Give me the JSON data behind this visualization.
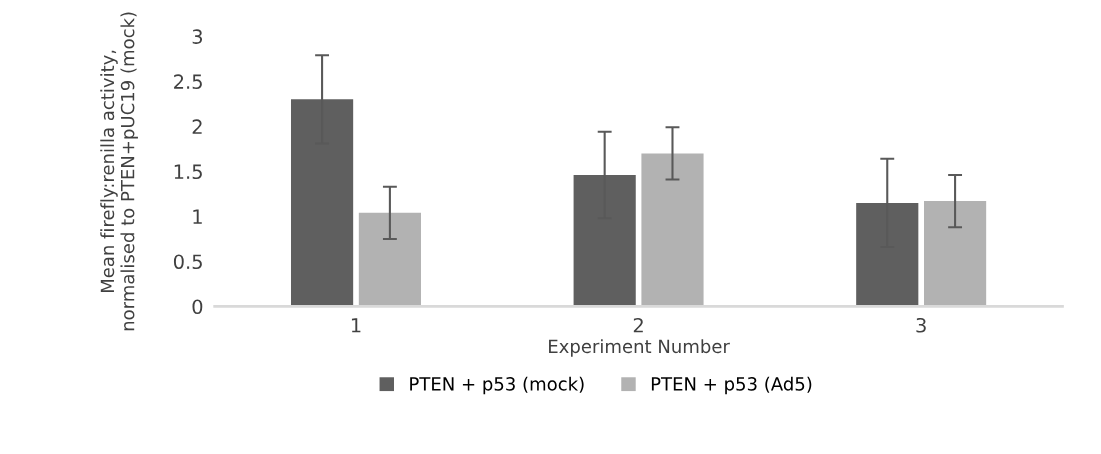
{
  "chart_data": {
    "type": "bar",
    "xlabel": "Experiment Number",
    "ylabel": "Mean firefly:renilla activity, normalised to PTEN+pUC19 (mock)",
    "categories": [
      "1",
      "2",
      "3"
    ],
    "series": [
      {
        "name": "PTEN + p53 (mock)",
        "color": "#5f5f5f",
        "values": [
          2.3,
          1.46,
          1.15
        ],
        "errors": [
          0.49,
          0.48,
          0.49
        ]
      },
      {
        "name": "PTEN + p53 (Ad5)",
        "color": "#b2b2b2",
        "values": [
          1.04,
          1.7,
          1.17
        ],
        "errors": [
          0.29,
          0.29,
          0.29
        ]
      }
    ],
    "ylim": [
      0,
      3
    ],
    "yticks": [
      0,
      0.5,
      1,
      1.5,
      2,
      2.5,
      3
    ],
    "grid": false,
    "legend": "bottom"
  }
}
